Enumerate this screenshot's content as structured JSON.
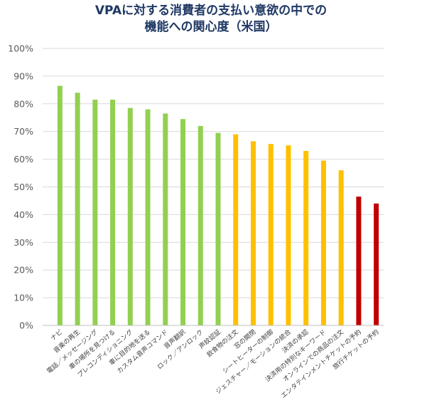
{
  "chart_data": {
    "type": "bar",
    "title": [
      "VPAに対する消費者の支払い意欲の中での",
      "機能への関心度（米国）"
    ],
    "xlabel": "",
    "ylabel": "",
    "ylim": [
      0,
      100
    ],
    "yticks": [
      "0%",
      "10%",
      "20%",
      "30%",
      "40%",
      "50%",
      "60%",
      "70%",
      "80%",
      "90%",
      "100%"
    ],
    "grid": true,
    "categories": [
      "ナビ",
      "音楽の再生",
      "電話／メッセージング",
      "車の場所を見つける",
      "プレコンディショニング",
      "車に目的地を送る",
      "カスタム音声コマンド",
      "音声翻訳",
      "ロック／アンロック",
      "声紋認証",
      "飲食物の注文",
      "窓の開閉",
      "シートヒーターの制御",
      "ジェスチャー／モーションの統合",
      "決済の承認",
      "決済用の特別なキーワード",
      "オンラインでの商品の注文",
      "エンタテインメントチケットの予約",
      "旅行チケットの予約"
    ],
    "values": [
      86.5,
      84,
      81.5,
      81.5,
      78.5,
      78,
      76.5,
      74.5,
      72,
      69.5,
      69,
      66.5,
      65.5,
      65,
      63,
      59.5,
      56,
      46.5,
      44
    ],
    "bar_colors": [
      "#92d050",
      "#92d050",
      "#92d050",
      "#92d050",
      "#92d050",
      "#92d050",
      "#92d050",
      "#92d050",
      "#92d050",
      "#92d050",
      "#ffc000",
      "#ffc000",
      "#ffc000",
      "#ffc000",
      "#ffc000",
      "#ffc000",
      "#ffc000",
      "#c00000",
      "#c00000"
    ]
  }
}
